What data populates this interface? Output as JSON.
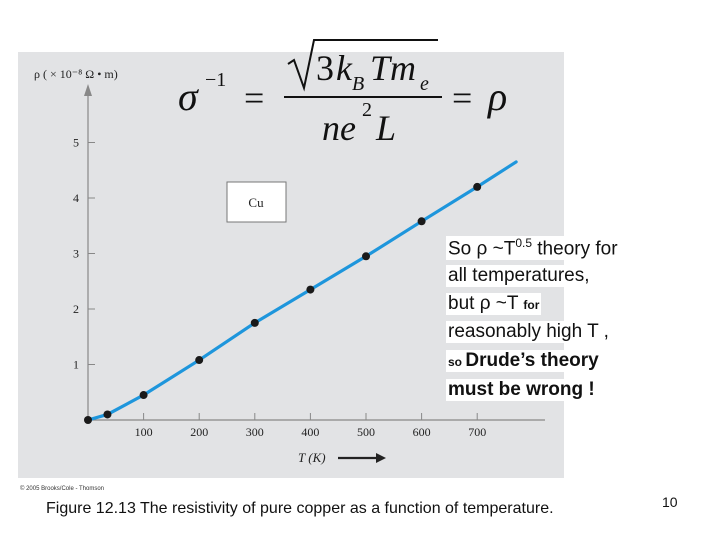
{
  "chart_data": {
    "type": "line",
    "ylabel": "ρ ( × 10⁻⁸ Ω • m)",
    "xlabel": "T (K)",
    "x_ticks": [
      100,
      200,
      300,
      400,
      500,
      600,
      700
    ],
    "y_ticks": [
      1,
      2,
      3,
      4,
      5
    ],
    "xlim": [
      0,
      780
    ],
    "ylim": [
      0,
      6
    ],
    "legend": "Cu",
    "points": [
      {
        "x": 0,
        "y": 0
      },
      {
        "x": 35,
        "y": 0.1
      },
      {
        "x": 100,
        "y": 0.45
      },
      {
        "x": 200,
        "y": 1.08
      },
      {
        "x": 300,
        "y": 1.75
      },
      {
        "x": 400,
        "y": 2.35
      },
      {
        "x": 500,
        "y": 2.95
      },
      {
        "x": 600,
        "y": 3.58
      },
      {
        "x": 700,
        "y": 4.2
      }
    ],
    "curve_end": {
      "x": 770,
      "y": 4.65
    }
  },
  "equation": {
    "lhs": "σ",
    "lhs_exp": "−1",
    "eq1": "=",
    "num_coeff": "3",
    "num_k": "k",
    "num_k_sub": "B",
    "num_T": "T",
    "num_m": "m",
    "num_m_sub": "e",
    "den_n": "ne",
    "den_exp": "2",
    "den_L": "L",
    "eq2": "=",
    "rhs": "ρ"
  },
  "note": {
    "line1_a": "So ρ ~T",
    "line1_sup": "0.5",
    "line1_b": " theory for",
    "line2": "all temperatures,",
    "line3_a": "but ρ ~T ",
    "line3_small": "for",
    "line4": "reasonably high T ,",
    "line5_small": "so ",
    "line5_bold": "Drude’s theory",
    "line6_bold": "must be wrong !"
  },
  "copyright": "© 2005 Brooks/Cole - Thomson",
  "caption": "Figure 12.13 The resistivity of pure copper as a function of temperature.",
  "page_number": "10",
  "colors": {
    "curve": "#1e96dc",
    "points": "#1a1a1a",
    "panel": "#e2e3e5",
    "axis": "#888888"
  }
}
